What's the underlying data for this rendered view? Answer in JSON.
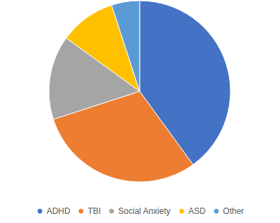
{
  "chart_data": {
    "type": "pie",
    "categories": [
      "ADHD",
      "TBI",
      "Social Anxiety",
      "ASD",
      "Other"
    ],
    "values": [
      40,
      30,
      15,
      10,
      5
    ],
    "colors": [
      "#4472c4",
      "#ed7d31",
      "#a5a5a5",
      "#ffc000",
      "#5b9bd5"
    ],
    "legend": "bottom"
  }
}
